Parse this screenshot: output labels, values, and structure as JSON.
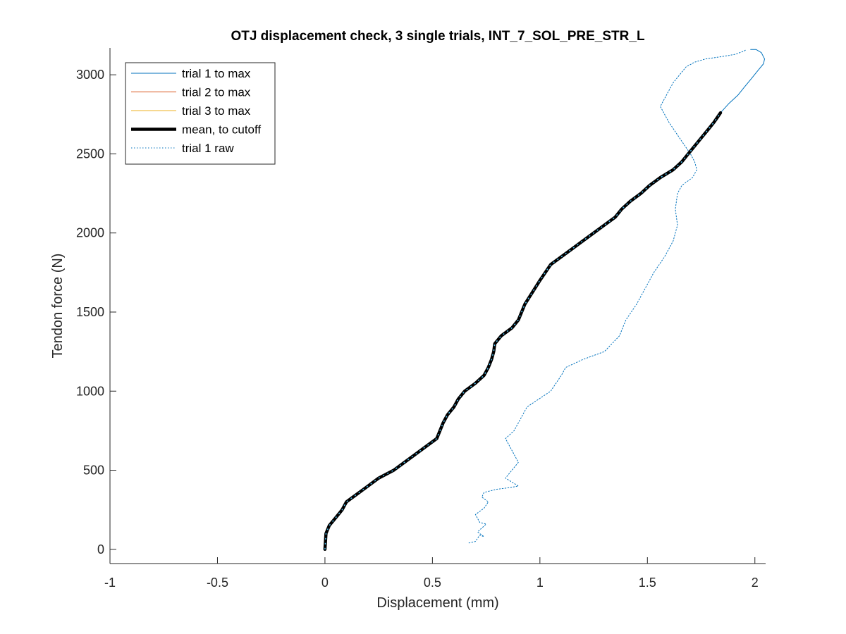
{
  "chart_data": {
    "type": "line",
    "title": "OTJ displacement check, 3 single trials, INT_7_SOL_PRE_STR_L",
    "xlabel": "Displacement (mm)",
    "ylabel": "Tendon force (N)",
    "xlim": [
      -1,
      2.05
    ],
    "ylim": [
      -90,
      3170
    ],
    "xticks": [
      -1,
      -0.5,
      0,
      0.5,
      1,
      1.5,
      2
    ],
    "xtick_labels": [
      "-1",
      "-0.5",
      "0",
      "0.5",
      "1",
      "1.5",
      "2"
    ],
    "yticks": [
      0,
      500,
      1000,
      1500,
      2000,
      2500,
      3000
    ],
    "ytick_labels": [
      "0",
      "500",
      "1000",
      "1500",
      "2000",
      "2500",
      "3000"
    ],
    "grid": false,
    "legend_position": "top-left",
    "series": [
      {
        "name": "trial 1 to max",
        "color": "#0072BD",
        "style": "solid",
        "x": [
          0,
          0.005,
          0.02,
          0.05,
          0.08,
          0.1,
          0.15,
          0.2,
          0.25,
          0.32,
          0.37,
          0.42,
          0.47,
          0.52,
          0.55,
          0.57,
          0.6,
          0.62,
          0.65,
          0.7,
          0.74,
          0.76,
          0.775,
          0.785,
          0.79,
          0.82,
          0.87,
          0.9,
          0.93,
          1.0,
          1.05,
          1.1,
          1.15,
          1.2,
          1.25,
          1.3,
          1.35,
          1.38,
          1.42,
          1.47,
          1.51,
          1.56,
          1.62,
          1.66,
          1.69,
          1.72,
          1.75,
          1.78,
          1.81,
          1.84,
          1.88,
          1.92,
          1.95,
          1.98,
          2.01,
          2.04,
          2.045,
          2.03,
          2.005,
          1.98
        ],
        "y": [
          0,
          100,
          150,
          200,
          250,
          300,
          350,
          400,
          450,
          500,
          550,
          600,
          650,
          700,
          800,
          850,
          900,
          950,
          1000,
          1050,
          1100,
          1150,
          1200,
          1250,
          1300,
          1350,
          1400,
          1450,
          1550,
          1700,
          1800,
          1850,
          1900,
          1950,
          2000,
          2050,
          2100,
          2150,
          2200,
          2250,
          2300,
          2350,
          2400,
          2450,
          2500,
          2550,
          2600,
          2650,
          2700,
          2760,
          2820,
          2870,
          2920,
          2970,
          3020,
          3070,
          3100,
          3140,
          3160,
          3160
        ]
      },
      {
        "name": "trial 2 to max",
        "color": "#D95319",
        "style": "solid",
        "x": [
          0,
          0.005,
          0.02,
          0.05,
          0.08,
          0.1,
          0.15,
          0.2,
          0.25,
          0.32,
          0.37,
          0.42,
          0.47,
          0.52,
          0.55,
          0.57,
          0.6,
          0.62,
          0.65,
          0.7,
          0.74,
          0.76,
          0.775,
          0.785,
          0.79,
          0.82,
          0.87,
          0.9,
          0.93,
          1.0,
          1.05,
          1.1,
          1.15,
          1.2,
          1.25,
          1.3,
          1.35,
          1.38,
          1.42,
          1.47,
          1.51,
          1.56,
          1.62,
          1.66,
          1.69,
          1.72,
          1.75,
          1.78,
          1.81,
          1.84
        ],
        "y": [
          0,
          100,
          150,
          200,
          250,
          300,
          350,
          400,
          450,
          500,
          550,
          600,
          650,
          700,
          800,
          850,
          900,
          950,
          1000,
          1050,
          1100,
          1150,
          1200,
          1250,
          1300,
          1350,
          1400,
          1450,
          1550,
          1700,
          1800,
          1850,
          1900,
          1950,
          2000,
          2050,
          2100,
          2150,
          2200,
          2250,
          2300,
          2350,
          2400,
          2450,
          2500,
          2550,
          2600,
          2650,
          2700,
          2760
        ]
      },
      {
        "name": "trial 3 to max",
        "color": "#EDB120",
        "style": "solid",
        "x": [
          0,
          0.005,
          0.02,
          0.05,
          0.08,
          0.1,
          0.15,
          0.2,
          0.25,
          0.32,
          0.37,
          0.42,
          0.47,
          0.52,
          0.55,
          0.57,
          0.6,
          0.62,
          0.65,
          0.7,
          0.74,
          0.76,
          0.775,
          0.785,
          0.79,
          0.82,
          0.87,
          0.9,
          0.93,
          1.0,
          1.05,
          1.1,
          1.15,
          1.2,
          1.25,
          1.3,
          1.35,
          1.38,
          1.42,
          1.47,
          1.51,
          1.56,
          1.62,
          1.66,
          1.69,
          1.72,
          1.75,
          1.78,
          1.81,
          1.84
        ],
        "y": [
          0,
          100,
          150,
          200,
          250,
          300,
          350,
          400,
          450,
          500,
          550,
          600,
          650,
          700,
          800,
          850,
          900,
          950,
          1000,
          1050,
          1100,
          1150,
          1200,
          1250,
          1300,
          1350,
          1400,
          1450,
          1550,
          1700,
          1800,
          1850,
          1900,
          1950,
          2000,
          2050,
          2100,
          2150,
          2200,
          2250,
          2300,
          2350,
          2400,
          2450,
          2500,
          2550,
          2600,
          2650,
          2700,
          2760
        ]
      },
      {
        "name": "mean, to cutoff",
        "color": "#000000",
        "style": "thick",
        "x": [
          0,
          0.005,
          0.02,
          0.05,
          0.08,
          0.1,
          0.15,
          0.2,
          0.25,
          0.32,
          0.37,
          0.42,
          0.47,
          0.52,
          0.55,
          0.57,
          0.6,
          0.62,
          0.65,
          0.7,
          0.74,
          0.76,
          0.775,
          0.785,
          0.79,
          0.82,
          0.87,
          0.9,
          0.93,
          1.0,
          1.05,
          1.1,
          1.15,
          1.2,
          1.25,
          1.3,
          1.35,
          1.38,
          1.42,
          1.47,
          1.51,
          1.56,
          1.62,
          1.66,
          1.69,
          1.72,
          1.75,
          1.78,
          1.81,
          1.84
        ],
        "y": [
          0,
          100,
          150,
          200,
          250,
          300,
          350,
          400,
          450,
          500,
          550,
          600,
          650,
          700,
          800,
          850,
          900,
          950,
          1000,
          1050,
          1100,
          1150,
          1200,
          1250,
          1300,
          1350,
          1400,
          1450,
          1550,
          1700,
          1800,
          1850,
          1900,
          1950,
          2000,
          2050,
          2100,
          2150,
          2200,
          2250,
          2300,
          2350,
          2400,
          2450,
          2500,
          2550,
          2600,
          2650,
          2700,
          2760
        ]
      },
      {
        "name": "trial 1 raw",
        "color": "#0072BD",
        "style": "dotted",
        "x": [
          0.67,
          0.7,
          0.72,
          0.74,
          0.71,
          0.75,
          0.72,
          0.7,
          0.74,
          0.76,
          0.73,
          0.74,
          0.8,
          0.86,
          0.9,
          0.84,
          0.9,
          0.86,
          0.84,
          0.88,
          0.9,
          0.94,
          1.05,
          1.1,
          1.12,
          1.2,
          1.3,
          1.37,
          1.4,
          1.45,
          1.49,
          1.53,
          1.58,
          1.62,
          1.64,
          1.63,
          1.64,
          1.66,
          1.71,
          1.73,
          1.72,
          1.7,
          1.65,
          1.6,
          1.56,
          1.58,
          1.6,
          1.62,
          1.65,
          1.68,
          1.72,
          1.77,
          1.82,
          1.87,
          1.91,
          1.93,
          1.95,
          1.96
        ],
        "y": [
          40,
          50,
          90,
          80,
          110,
          160,
          170,
          220,
          260,
          300,
          330,
          360,
          380,
          390,
          400,
          450,
          550,
          650,
          700,
          750,
          800,
          900,
          1000,
          1100,
          1150,
          1200,
          1250,
          1350,
          1450,
          1550,
          1650,
          1750,
          1850,
          1950,
          2050,
          2150,
          2250,
          2300,
          2350,
          2400,
          2450,
          2500,
          2600,
          2700,
          2800,
          2850,
          2900,
          2950,
          3000,
          3050,
          3080,
          3100,
          3110,
          3120,
          3130,
          3140,
          3150,
          3160
        ]
      }
    ]
  }
}
